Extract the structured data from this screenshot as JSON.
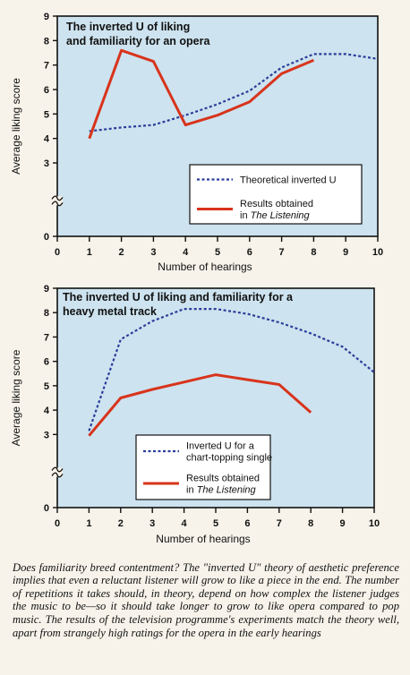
{
  "colors": {
    "plot_bg": "#cde3ef",
    "legend_bg": "#ffffff",
    "theory_line": "#2b3d9a",
    "results_line": "#d8341c",
    "ink": "#111111"
  },
  "chart_data": [
    {
      "type": "line",
      "title": "The inverted U of liking and familiarity for an opera",
      "title_lines": [
        "The inverted U of liking",
        "and familiarity for an opera"
      ],
      "xlabel": "Number of hearings",
      "ylabel": "Average liking score",
      "xlim": [
        0,
        10
      ],
      "ylim": [
        0,
        9
      ],
      "xticks": [
        "0",
        "1",
        "2",
        "3",
        "4",
        "5",
        "6",
        "7",
        "8",
        "9",
        "10"
      ],
      "yticks": [
        "0",
        "3",
        "4",
        "5",
        "6",
        "7",
        "8",
        "9"
      ],
      "axis_break": true,
      "legend_position": "bottom-right",
      "series": [
        {
          "name": "Theoretical inverted U",
          "style": "dotted",
          "x": [
            1,
            2,
            3,
            4,
            5,
            6,
            7,
            8,
            9,
            10
          ],
          "y": [
            4.3,
            4.45,
            4.55,
            4.95,
            5.4,
            5.95,
            6.9,
            7.45,
            7.45,
            7.25
          ]
        },
        {
          "name": "Results obtained in The Listening",
          "name_lines": [
            "Results obtained",
            "in "
          ],
          "name_italic": "The Listening",
          "style": "solid",
          "x": [
            1,
            2,
            3,
            4,
            5,
            6,
            7,
            8
          ],
          "y": [
            4.0,
            7.6,
            7.15,
            4.55,
            4.95,
            5.5,
            6.65,
            7.2
          ]
        }
      ]
    },
    {
      "type": "line",
      "title": "The inverted U of liking and familiarity for a heavy metal track",
      "title_lines": [
        "The inverted U of liking and familiarity for a",
        "heavy metal track"
      ],
      "xlabel": "Number of hearings",
      "ylabel": "Average liking score",
      "xlim": [
        0,
        10
      ],
      "ylim": [
        0,
        9
      ],
      "xticks": [
        "0",
        "1",
        "2",
        "3",
        "4",
        "5",
        "6",
        "7",
        "8",
        "9",
        "10"
      ],
      "yticks": [
        "0",
        "3",
        "4",
        "5",
        "6",
        "7",
        "8",
        "9"
      ],
      "axis_break": true,
      "legend_position": "bottom-center",
      "series": [
        {
          "name": "Inverted U for a chart-topping single",
          "name_lines": [
            "Inverted U for a",
            "chart-topping single"
          ],
          "style": "dotted",
          "x": [
            1,
            2,
            3,
            4,
            5,
            6,
            7,
            8,
            9,
            10
          ],
          "y": [
            3.15,
            6.9,
            7.65,
            8.15,
            8.15,
            7.95,
            7.6,
            7.15,
            6.6,
            5.55
          ]
        },
        {
          "name": "Results obtained in The Listening",
          "name_lines": [
            "Results obtained",
            "in "
          ],
          "name_italic": "The Listening",
          "style": "solid",
          "x": [
            1,
            2,
            3,
            4,
            5,
            6,
            7,
            8
          ],
          "y": [
            2.95,
            4.5,
            4.85,
            5.15,
            5.45,
            5.25,
            5.05,
            3.9
          ]
        }
      ]
    }
  ],
  "caption": "Does familiarity breed contentment? The \"inverted U\" theory of aesthetic preference implies that even a reluctant listener will grow to like a piece in the end. The number of repetitions it takes should, in theory, depend on how complex the listener judges the music to be—so it should take longer to grow to like opera compared to pop music. The results of the television programme's experiments match the theory well, apart from strangely high ratings for the opera in the early hearings"
}
